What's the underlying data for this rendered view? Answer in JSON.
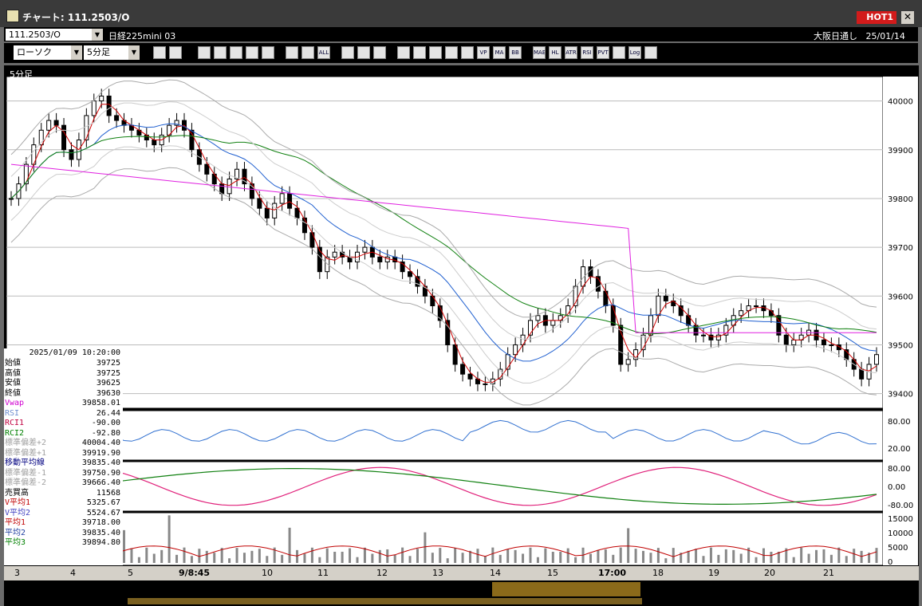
{
  "window": {
    "title": "チャート: 111.2503/O",
    "hot_badge": "HOT1",
    "close_glyph": "✕"
  },
  "header": {
    "code": "111.2503/O",
    "name": "日経225mini 03",
    "market": "大阪日通し",
    "date": "25/01/14"
  },
  "toolbar": {
    "chart_type": "ローソク",
    "timeframe": "5分足",
    "buttons": [
      "zoom-icon",
      "crosshair-icon",
      "draw-icon",
      "pointer-icon",
      "undo-icon",
      "list-icon",
      "trash-icon",
      "bar-icon",
      "bar2-icon",
      "ALL",
      "gear-icon",
      "wrench-icon",
      "palette-icon",
      "download-icon",
      "search-icon",
      "grid-icon",
      "clear-icon",
      "disabled-icon",
      "VP",
      "MA",
      "BB",
      "MAE",
      "HL",
      "ATR",
      "RSI",
      "PVT",
      "window-icon",
      "Log",
      "export-icon"
    ]
  },
  "main_panel": {
    "timeframe_label": "5分足",
    "y_ticks": [
      "40000",
      "39900",
      "39800",
      "39700",
      "39600",
      "39500",
      "39400"
    ]
  },
  "rsi_panel": {
    "y_ticks": [
      "80.00",
      "20.00"
    ]
  },
  "rci_panel": {
    "y_ticks": [
      "80.00",
      "0.00",
      "-80.00"
    ]
  },
  "volume_panel": {
    "y_ticks": [
      "15000",
      "10000",
      "5000",
      "0"
    ]
  },
  "x_labels": [
    "3",
    "4",
    "5",
    "9/8:45",
    "10",
    "11",
    "12",
    "13",
    "14",
    "15",
    "17:00",
    "18",
    "19",
    "20",
    "21"
  ],
  "info": {
    "datetime": "2025/01/09  10:20:00",
    "rows": [
      {
        "label": "始値",
        "value": "39725",
        "color": "#000000"
      },
      {
        "label": "高値",
        "value": "39725",
        "color": "#000000"
      },
      {
        "label": "安値",
        "value": "39625",
        "color": "#000000"
      },
      {
        "label": "終値",
        "value": "39630",
        "color": "#000000"
      },
      {
        "label": "Vwap",
        "value": "39858.01",
        "color": "#d000d0"
      },
      {
        "label": "RSI",
        "value": "26.44",
        "color": "#6f8fcf"
      },
      {
        "label": "RCI1",
        "value": "-90.00",
        "color": "#c00040"
      },
      {
        "label": "RCI2",
        "value": "-92.80",
        "color": "#008000"
      },
      {
        "label": "標準偏差+2",
        "value": "40004.40",
        "color": "#a0a0a0"
      },
      {
        "label": "標準偏差+1",
        "value": "39919.90",
        "color": "#a0a0a0"
      },
      {
        "label": "移動平均線",
        "value": "39835.40",
        "color": "#000080"
      },
      {
        "label": "標準偏差-1",
        "value": "39750.90",
        "color": "#a0a0a0"
      },
      {
        "label": "標準偏差-2",
        "value": "39666.40",
        "color": "#a0a0a0"
      },
      {
        "label": "売買高",
        "value": "11568",
        "color": "#000000"
      },
      {
        "label": "V平均1",
        "value": "5325.67",
        "color": "#c00000"
      },
      {
        "label": "V平均2",
        "value": "5524.67",
        "color": "#4040c0"
      },
      {
        "label": "平均1",
        "value": "39718.00",
        "color": "#c00000"
      },
      {
        "label": "平均2",
        "value": "39835.40",
        "color": "#2040a0"
      },
      {
        "label": "平均3",
        "value": "39894.80",
        "color": "#008000"
      }
    ]
  },
  "chart_data": {
    "type": "candlestick",
    "y_axis": {
      "min": 39370,
      "max": 40050
    },
    "candles": [
      39800,
      39830,
      39870,
      39910,
      39940,
      39960,
      39950,
      39900,
      39880,
      39920,
      39970,
      40000,
      40010,
      39970,
      39960,
      39950,
      39940,
      39930,
      39920,
      39910,
      39930,
      39950,
      39960,
      39940,
      39900,
      39870,
      39850,
      39830,
      39810,
      39840,
      39860,
      39830,
      39800,
      39780,
      39760,
      39790,
      39810,
      39780,
      39760,
      39730,
      39700,
      39650,
      39680,
      39690,
      39680,
      39670,
      39690,
      39700,
      39680,
      39670,
      39680,
      39670,
      39650,
      39640,
      39620,
      39600,
      39580,
      39550,
      39500,
      39460,
      39440,
      39430,
      39420,
      39420,
      39430,
      39450,
      39480,
      39500,
      39520,
      39550,
      39560,
      39540,
      39550,
      39560,
      39580,
      39620,
      39660,
      39640,
      39610,
      39580,
      39540,
      39460,
      39470,
      39490,
      39520,
      39560,
      39600,
      39590,
      39580,
      39560,
      39540,
      39520,
      39520,
      39510,
      39520,
      39540,
      39560,
      39570,
      39580,
      39580,
      39570,
      39560,
      39520,
      39500,
      39510,
      39520,
      39530,
      39510,
      39500,
      39500,
      39490,
      39470,
      39450,
      39430,
      39460,
      39480
    ],
    "rsi_range": [
      0,
      100
    ],
    "rci_range": [
      -100,
      100
    ],
    "volume_range": [
      0,
      16000
    ]
  }
}
